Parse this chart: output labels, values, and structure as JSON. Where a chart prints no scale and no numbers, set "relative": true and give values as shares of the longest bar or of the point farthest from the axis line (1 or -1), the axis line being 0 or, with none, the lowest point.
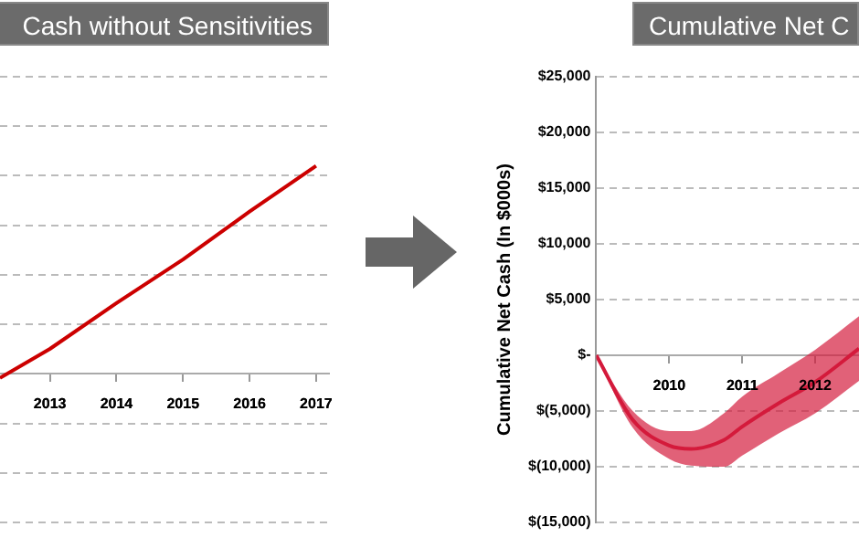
{
  "chart_data": [
    {
      "type": "line",
      "title": "Cash without Sensitivities",
      "relative": true,
      "x": [
        2012.25,
        2013,
        2014,
        2015,
        2016,
        2017
      ],
      "series": [
        {
          "color": "#cc0000",
          "values": [
            -0.02,
            0.12,
            0.34,
            0.55,
            0.78,
            1
          ]
        }
      ],
      "xlim": [
        2012.25,
        2017.2
      ],
      "xticks": [
        2013,
        2014,
        2015,
        2016,
        2017
      ],
      "tick_labels": "x",
      "grid": "y",
      "legend": false
    },
    {
      "type": "line",
      "title": "Cumulative Net C",
      "ylabel": "Cumulative Net Cash (In $000s)",
      "x": [
        2009,
        2009.5,
        2010,
        2010.3,
        2010.75,
        2011,
        2011.5,
        2012,
        2012.6
      ],
      "series": [
        {
          "color": "#d41a3c",
          "values": [
            0,
            -5800,
            -8100,
            -8400,
            -7600,
            -6400,
            -4300,
            -2400,
            600
          ],
          "upper": [
            0,
            -5000,
            -6800,
            -6800,
            -5200,
            -3700,
            -1600,
            500,
            3500
          ],
          "lower": [
            0,
            -6500,
            -9300,
            -9900,
            -10000,
            -9000,
            -7000,
            -5200,
            -2300
          ]
        }
      ],
      "xlim": [
        2009,
        2012.6
      ],
      "xticks": [
        2010,
        2011,
        2012
      ],
      "ylim": [
        -15000,
        25000
      ],
      "yticks": [
        {
          "value": -15000,
          "label": "$(15,000)"
        },
        {
          "value": -10000,
          "label": "$(10,000)"
        },
        {
          "value": -5000,
          "label": "$(5,000)"
        },
        {
          "value": 0,
          "label": "$-"
        },
        {
          "value": 5000,
          "label": "$5,000"
        },
        {
          "value": 10000,
          "label": "$10,000"
        },
        {
          "value": 15000,
          "label": "$15,000"
        },
        {
          "value": 20000,
          "label": "$20,000"
        },
        {
          "value": 25000,
          "label": "$25,000"
        }
      ],
      "grid": "y",
      "legend": false
    }
  ]
}
